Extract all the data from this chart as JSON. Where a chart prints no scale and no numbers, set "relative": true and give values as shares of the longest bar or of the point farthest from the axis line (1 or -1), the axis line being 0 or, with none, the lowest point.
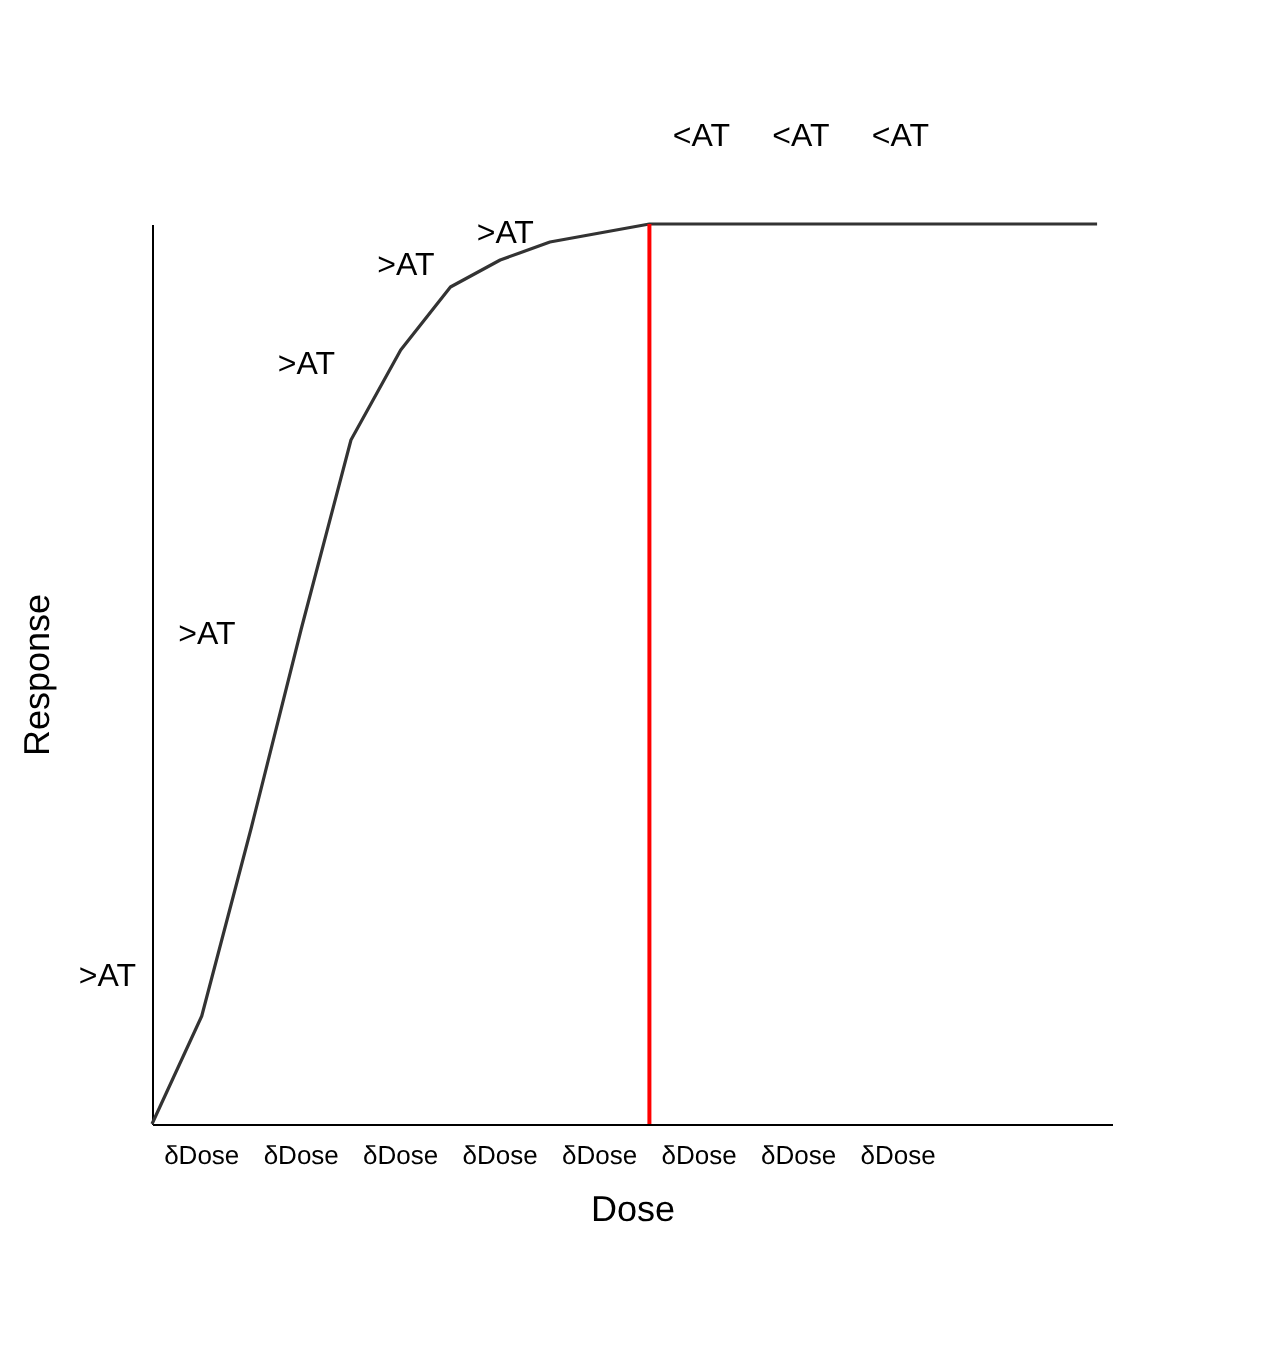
{
  "chart_data": {
    "type": "line",
    "relative": true,
    "xlabel": "Dose",
    "ylabel": "Response",
    "categories": [
      null,
      null,
      null,
      null,
      null,
      null,
      null,
      null,
      null,
      null,
      null,
      null,
      null,
      null,
      null,
      null,
      null,
      null,
      null,
      null
    ],
    "series": [
      {
        "color": "#333333",
        "values": [
          0,
          0.12,
          0.33,
          0.55,
          0.76,
          0.86,
          0.93,
          0.96,
          0.98,
          0.99,
          1,
          1,
          1,
          1,
          1,
          1,
          1,
          1,
          1,
          1
        ]
      }
    ],
    "annotations": [
      ">AT",
      ">AT",
      ">AT",
      ">AT",
      ">AT",
      "<AT",
      "<AT",
      "<AT",
      "δDose",
      "δDose",
      "δDose",
      "δDose",
      "δDose",
      "δDose",
      "δDose",
      "δDose"
    ]
  }
}
